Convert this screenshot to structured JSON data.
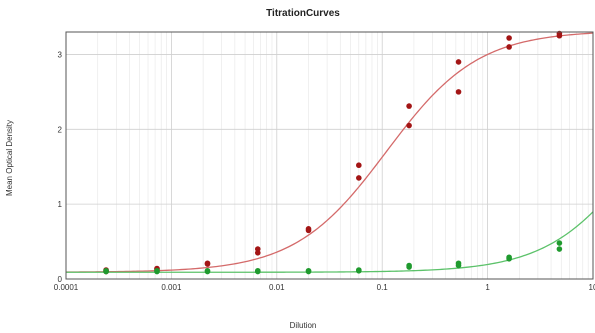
{
  "chart_data": {
    "type": "scatter",
    "title": "TitrationCurves",
    "xlabel": "Dilution",
    "ylabel": "Mean Optical Density",
    "x_scale": "log",
    "xlim": [
      0.0001,
      10
    ],
    "ylim": [
      0,
      3.3
    ],
    "x_ticks": [
      "0.0001",
      "0.001",
      "0.01",
      "0.1",
      "1",
      "10"
    ],
    "y_ticks": [
      "0",
      "1",
      "2",
      "3"
    ],
    "grid": true,
    "series": [
      {
        "color": "#a31515",
        "fit_color": "#d46a6a",
        "points": [
          {
            "x": 0.00024,
            "y": 0.1
          },
          {
            "x": 0.00024,
            "y": 0.12
          },
          {
            "x": 0.00073,
            "y": 0.13
          },
          {
            "x": 0.00073,
            "y": 0.14
          },
          {
            "x": 0.0022,
            "y": 0.2
          },
          {
            "x": 0.0022,
            "y": 0.21
          },
          {
            "x": 0.0066,
            "y": 0.35
          },
          {
            "x": 0.0066,
            "y": 0.4
          },
          {
            "x": 0.02,
            "y": 0.65
          },
          {
            "x": 0.02,
            "y": 0.67
          },
          {
            "x": 0.06,
            "y": 1.35
          },
          {
            "x": 0.06,
            "y": 1.52
          },
          {
            "x": 0.18,
            "y": 2.05
          },
          {
            "x": 0.18,
            "y": 2.31
          },
          {
            "x": 0.53,
            "y": 2.5
          },
          {
            "x": 0.53,
            "y": 2.9
          },
          {
            "x": 1.6,
            "y": 3.1
          },
          {
            "x": 1.6,
            "y": 3.22
          },
          {
            "x": 4.8,
            "y": 3.25
          },
          {
            "x": 4.8,
            "y": 3.28
          }
        ],
        "fit": {
          "bottom": 0.09,
          "top": 3.32,
          "ec50": 0.11,
          "hill": 1.0
        }
      },
      {
        "color": "#1f9a2e",
        "fit_color": "#5cc26a",
        "points": [
          {
            "x": 0.00024,
            "y": 0.1
          },
          {
            "x": 0.00024,
            "y": 0.11
          },
          {
            "x": 0.00073,
            "y": 0.1
          },
          {
            "x": 0.00073,
            "y": 0.11
          },
          {
            "x": 0.0022,
            "y": 0.1
          },
          {
            "x": 0.0022,
            "y": 0.11
          },
          {
            "x": 0.0066,
            "y": 0.1
          },
          {
            "x": 0.0066,
            "y": 0.11
          },
          {
            "x": 0.02,
            "y": 0.1
          },
          {
            "x": 0.02,
            "y": 0.11
          },
          {
            "x": 0.06,
            "y": 0.11
          },
          {
            "x": 0.06,
            "y": 0.12
          },
          {
            "x": 0.18,
            "y": 0.16
          },
          {
            "x": 0.18,
            "y": 0.18
          },
          {
            "x": 0.53,
            "y": 0.18
          },
          {
            "x": 0.53,
            "y": 0.21
          },
          {
            "x": 1.6,
            "y": 0.27
          },
          {
            "x": 1.6,
            "y": 0.29
          },
          {
            "x": 4.8,
            "y": 0.4
          },
          {
            "x": 4.8,
            "y": 0.48
          }
        ],
        "fit": {
          "bottom": 0.09,
          "top": 3.32,
          "ec50": 30,
          "hill": 1.0
        }
      }
    ]
  }
}
